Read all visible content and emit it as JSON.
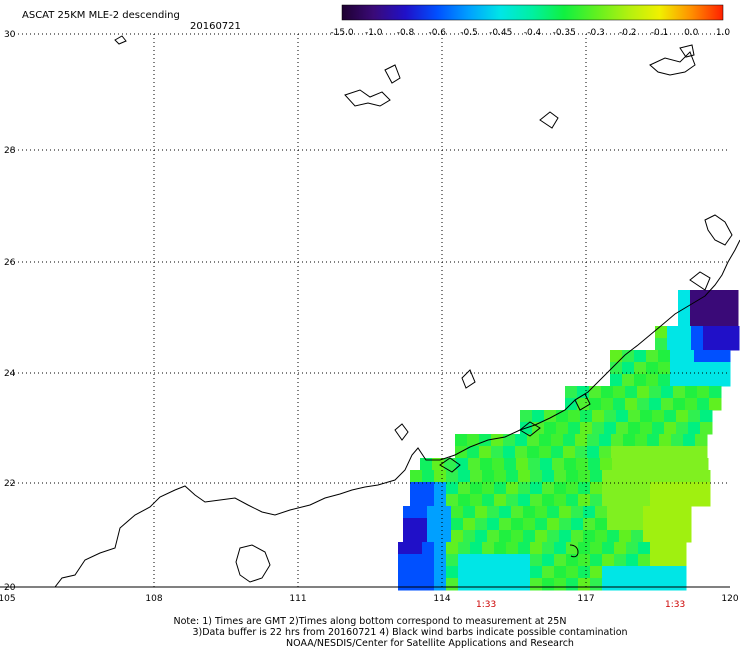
{
  "header": {
    "title": "ASCAT 25KM MLE-2 descending",
    "date": "20160721"
  },
  "colorbar": {
    "labels": [
      "-15.0",
      "-1.0",
      "-0.8",
      "-0.6",
      "-0.5",
      "-0.45",
      "-0.4",
      "-0.35",
      "-0.3",
      "-0.2",
      "-0.1",
      "0.0",
      "1.0"
    ],
    "colors": [
      "#1e0030",
      "#3a0a78",
      "#2010c8",
      "#0050ff",
      "#00a0ff",
      "#00e6e6",
      "#00f0a0",
      "#10f040",
      "#60f020",
      "#b0f010",
      "#f0f000",
      "#ff9000",
      "#ff2000"
    ]
  },
  "axes": {
    "lon_labels": [
      "105",
      "108",
      "111",
      "114",
      "117",
      "120"
    ],
    "lat_labels": [
      "30",
      "28",
      "26",
      "24",
      "22",
      "20"
    ]
  },
  "pass_times": [
    "1:33",
    "1:33"
  ],
  "notes": {
    "line1": "Note: 1) Times are GMT 2)Times along bottom correspond to measurement at 25N",
    "line2": "3)Data buffer is 22 hrs from 20160721 4) Black wind barbs indicate possible contamination",
    "line3": "NOAA/NESDIS/Center for Satellite Applications and Research"
  }
}
